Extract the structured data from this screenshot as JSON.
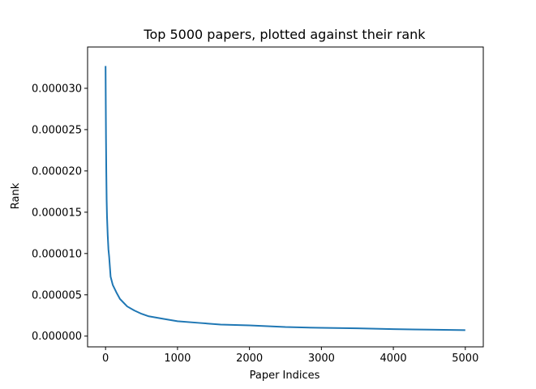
{
  "chart_data": {
    "type": "line",
    "title": "Top 5000 papers, plotted against their rank",
    "xlabel": "Paper Indices",
    "ylabel": "Rank",
    "xlim": [
      -250,
      5250
    ],
    "ylim": [
      -1.3e-06,
      3.5e-05
    ],
    "xticks": [
      0,
      1000,
      2000,
      3000,
      4000,
      5000
    ],
    "xtick_labels": [
      "0",
      "1000",
      "2000",
      "3000",
      "4000",
      "5000"
    ],
    "yticks": [
      0,
      5e-06,
      1e-05,
      1.5e-05,
      2e-05,
      2.5e-05,
      3e-05
    ],
    "ytick_labels": [
      "0.000000",
      "0.000005",
      "0.000010",
      "0.000015",
      "0.000020",
      "0.000025",
      "0.000030"
    ],
    "grid": false,
    "series": [
      {
        "color": "#1f77b4",
        "x": [
          0,
          3,
          6,
          10,
          15,
          20,
          30,
          40,
          50,
          70,
          100,
          150,
          200,
          300,
          400,
          500,
          600,
          800,
          1000,
          1300,
          1600,
          2000,
          2500,
          3000,
          3500,
          4000,
          4500,
          5000
        ],
        "y": [
          3.27e-05,
          2.8e-05,
          2.4e-05,
          2e-05,
          1.65e-05,
          1.45e-05,
          1.22e-05,
          1.05e-05,
          9.6e-06,
          7.2e-06,
          6.2e-06,
          5.3e-06,
          4.5e-06,
          3.6e-06,
          3.1e-06,
          2.7e-06,
          2.4e-06,
          2.1e-06,
          1.8e-06,
          1.6e-06,
          1.4e-06,
          1.3e-06,
          1.1e-06,
          1e-06,
          9.5e-07,
          8.5e-07,
          7.8e-07,
          7.2e-07
        ]
      }
    ]
  }
}
